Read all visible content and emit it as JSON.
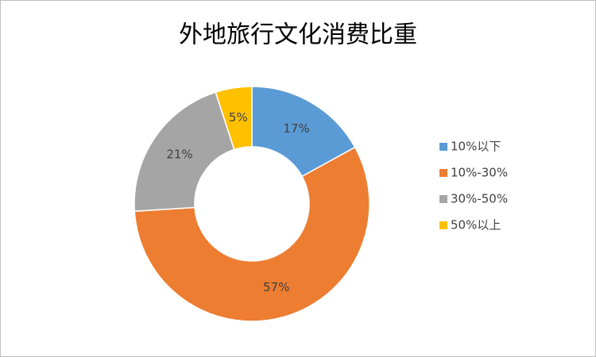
{
  "chart_data": {
    "type": "donut",
    "title": "外地旅行文化消费比重",
    "categories": [
      "10%以下",
      "10%-30%",
      "30%-50%",
      "50%以上"
    ],
    "values": [
      17,
      57,
      21,
      5
    ],
    "value_labels": [
      "17%",
      "57%",
      "21%",
      "5%"
    ],
    "colors": [
      "#5b9bd5",
      "#ed7d31",
      "#a5a5a5",
      "#ffc000"
    ],
    "legend": "right"
  }
}
